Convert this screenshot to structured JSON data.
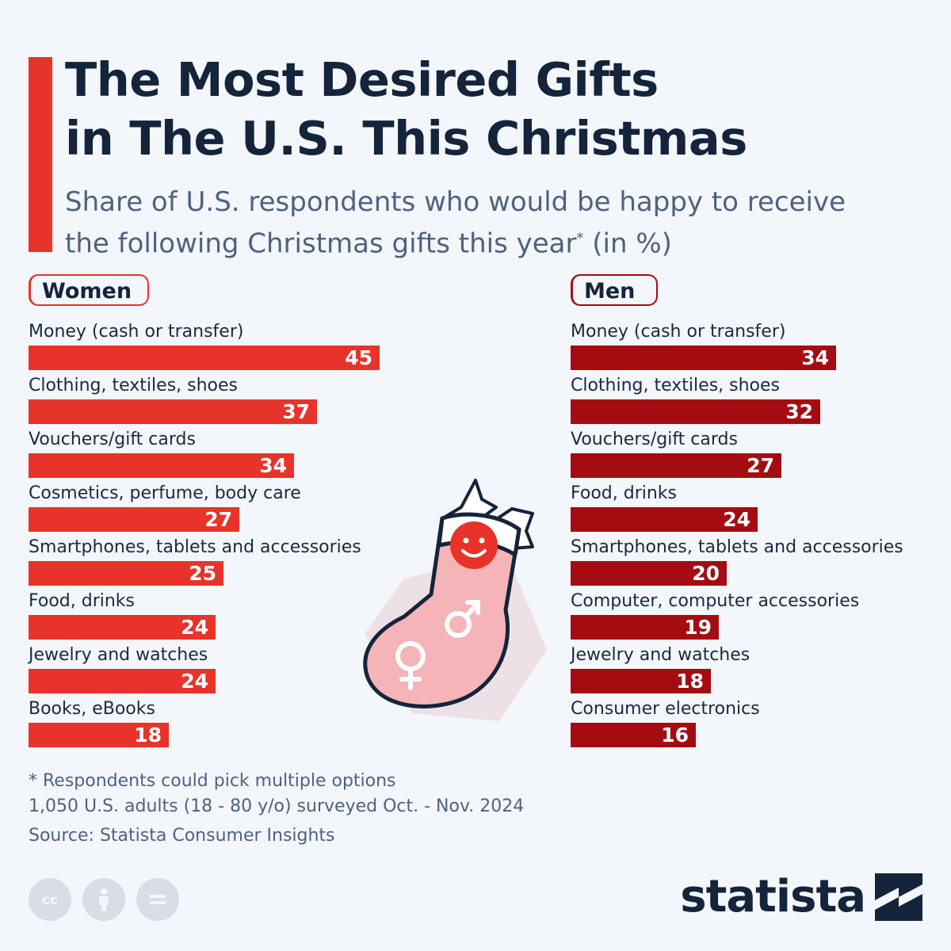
{
  "header": {
    "title_line1": "The Most Desired Gifts",
    "title_line2": "in The U.S. This Christmas",
    "subtitle_line1": "Share of U.S. respondents who would be happy to receive",
    "subtitle_line2_pre": "the following Christmas gifts this year",
    "subtitle_asterisk": "*",
    "subtitle_line2_post": " (in %)"
  },
  "colors": {
    "accent": "#e8332a",
    "women_bar": "#e8332a",
    "men_bar": "#a50c12",
    "title": "#14243a",
    "subtitle": "#4e6281",
    "background": "#f3f6fa"
  },
  "chart_data": [
    {
      "type": "bar",
      "orientation": "horizontal",
      "group": "Women",
      "categories": [
        "Money (cash or transfer)",
        "Clothing, textiles, shoes",
        "Vouchers/gift cards",
        "Cosmetics, perfume, body care",
        "Smartphones, tablets and accessories",
        "Food, drinks",
        "Jewelry and watches",
        "Books, eBooks"
      ],
      "values": [
        45,
        37,
        34,
        27,
        25,
        24,
        24,
        18
      ],
      "xlim": [
        0,
        45
      ]
    },
    {
      "type": "bar",
      "orientation": "horizontal",
      "group": "Men",
      "categories": [
        "Money (cash or transfer)",
        "Clothing, textiles, shoes",
        "Vouchers/gift cards",
        "Food, drinks",
        "Smartphones, tablets and accessories",
        "Computer, computer accessories",
        "Jewelry and watches",
        "Consumer electronics"
      ],
      "values": [
        34,
        32,
        27,
        24,
        20,
        19,
        18,
        16
      ],
      "xlim": [
        0,
        45
      ]
    }
  ],
  "footer": {
    "note1": "* Respondents could pick multiple options",
    "note2": "1,050 U.S. adults (18 - 80 y/o) surveyed Oct. - Nov. 2024",
    "source": "Source: Statista Consumer Insights",
    "brand": "statista",
    "license_icons": [
      "cc-icon",
      "attribution-icon",
      "no-derivatives-icon"
    ]
  },
  "illustration": {
    "icons": [
      "christmas-stocking-icon",
      "holly-leaves-icon",
      "smiley-face-icon",
      "male-symbol-icon",
      "female-symbol-icon"
    ]
  }
}
